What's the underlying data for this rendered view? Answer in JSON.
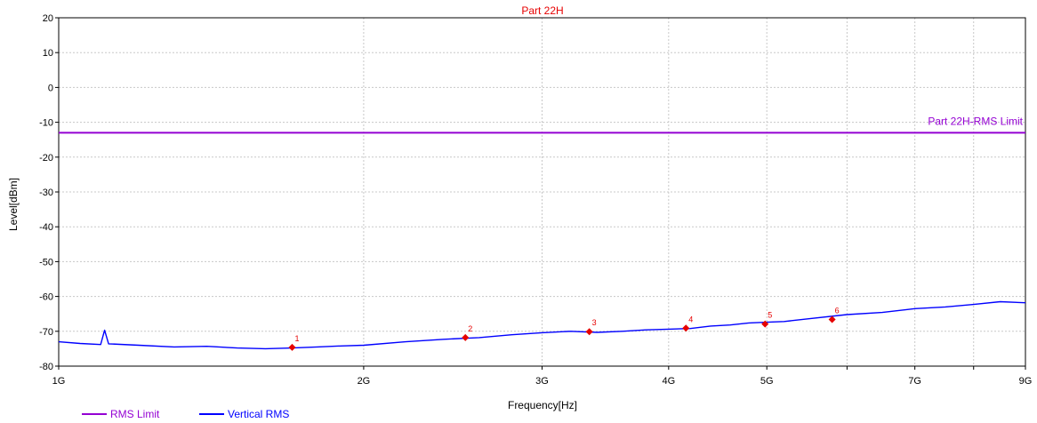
{
  "chart_data": {
    "type": "line",
    "title": "Part 22H",
    "xlabel": "Frequency[Hz]",
    "ylabel": "Level[dBm]",
    "x_scale": "log",
    "xlim": [
      1000000000,
      9000000000
    ],
    "ylim": [
      -80,
      20
    ],
    "x_ticks": [
      {
        "value": 1000000000,
        "label": "1G"
      },
      {
        "value": 2000000000,
        "label": "2G"
      },
      {
        "value": 3000000000,
        "label": "3G"
      },
      {
        "value": 4000000000,
        "label": "4G"
      },
      {
        "value": 5000000000,
        "label": "5G"
      },
      {
        "value": 6000000000,
        "label": ""
      },
      {
        "value": 7000000000,
        "label": "7G"
      },
      {
        "value": 8000000000,
        "label": ""
      },
      {
        "value": 9000000000,
        "label": "9G"
      }
    ],
    "y_ticks": [
      20,
      10,
      0,
      -10,
      -20,
      -30,
      -40,
      -50,
      -60,
      -70,
      -80
    ],
    "grid": true,
    "legend_position": "bottom-left",
    "series": [
      {
        "name": "RMS Limit",
        "color": "#9400d3",
        "x": [
          1000000000,
          9000000000
        ],
        "y": [
          -13,
          -13
        ],
        "annotation": "Part 22H-RMS Limit"
      },
      {
        "name": "Vertical RMS",
        "color": "#0000ff",
        "x": [
          1000000000,
          1050000000,
          1100000000,
          1110000000,
          1120000000,
          1200000000,
          1300000000,
          1400000000,
          1500000000,
          1600000000,
          1700000000,
          1800000000,
          1900000000,
          2000000000,
          2200000000,
          2400000000,
          2600000000,
          2800000000,
          3000000000,
          3200000000,
          3400000000,
          3600000000,
          3800000000,
          4000000000,
          4200000000,
          4400000000,
          4600000000,
          4800000000,
          5000000000,
          5200000000,
          5500000000,
          6000000000,
          6500000000,
          7000000000,
          7500000000,
          8000000000,
          8500000000,
          9000000000
        ],
        "y": [
          -73,
          -73.5,
          -73.8,
          -69.7,
          -73.6,
          -74,
          -74.5,
          -74.3,
          -74.8,
          -75,
          -74.8,
          -74.5,
          -74.2,
          -74,
          -73,
          -72.3,
          -71.8,
          -71,
          -70.4,
          -70,
          -70.3,
          -70,
          -69.6,
          -69.4,
          -69.2,
          -68.5,
          -68.2,
          -67.6,
          -67.4,
          -67.2,
          -66.4,
          -65.2,
          -64.6,
          -63.5,
          -63,
          -62.3,
          -61.5,
          -61.8
        ]
      }
    ],
    "markers": [
      {
        "label": "1",
        "x": 1700000000,
        "y": -74.6
      },
      {
        "label": "2",
        "x": 2520000000,
        "y": -71.8
      },
      {
        "label": "3",
        "x": 3340000000,
        "y": -70.1
      },
      {
        "label": "4",
        "x": 4160000000,
        "y": -69.1
      },
      {
        "label": "5",
        "x": 4980000000,
        "y": -67.9
      },
      {
        "label": "6",
        "x": 5800000000,
        "y": -66.6
      }
    ]
  }
}
